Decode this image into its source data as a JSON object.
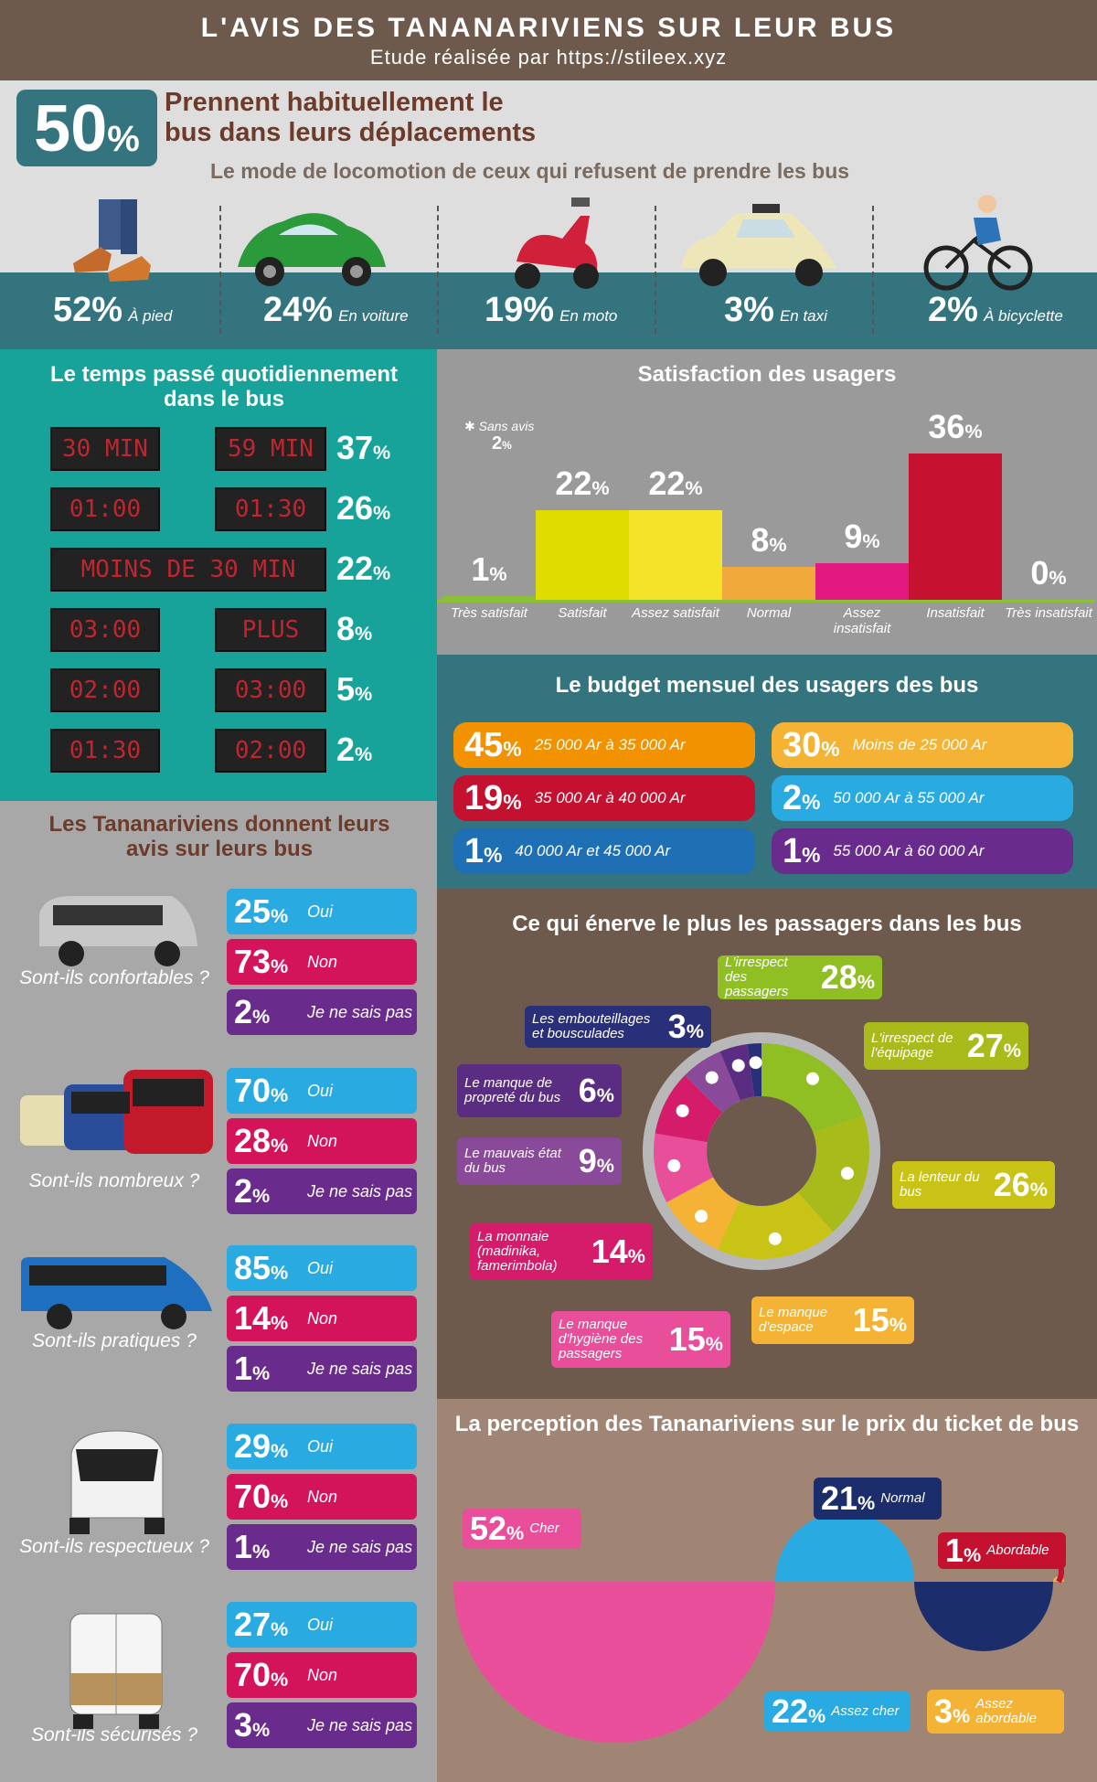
{
  "header": {
    "title": "L'AVIS DES TANANARIVIENS SUR LEUR BUS",
    "subtitle": "Etude réalisée par https://stileex.xyz"
  },
  "intro": {
    "pct": "50",
    "unit": "%",
    "line1": "Prennent habituellement le",
    "line2": "bus dans leurs déplacements",
    "modes_title": "Le mode de locomotion de ceux qui refusent de prendre les bus"
  },
  "modes": [
    {
      "pct": "52",
      "label": "À pied"
    },
    {
      "pct": "24",
      "label": "En voiture"
    },
    {
      "pct": "19",
      "label": "En moto"
    },
    {
      "pct": "3",
      "label": "En taxi"
    },
    {
      "pct": "2",
      "label": "À bicyclette"
    }
  ],
  "time": {
    "title": "Le temps passé quotidiennement dans le bus",
    "rows": [
      {
        "a": "30 MIN",
        "b": "59 MIN",
        "pct": "37"
      },
      {
        "a": "01:00",
        "b": "01:30",
        "pct": "26"
      },
      {
        "a": "MOINS DE 30 MIN",
        "b": "",
        "pct": "22"
      },
      {
        "a": "03:00",
        "b": "PLUS",
        "pct": "8"
      },
      {
        "a": "02:00",
        "b": "03:00",
        "pct": "5"
      },
      {
        "a": "01:30",
        "b": "02:00",
        "pct": "2"
      }
    ]
  },
  "satisfaction": {
    "title": "Satisfaction des usagers",
    "note_label": "Sans avis",
    "note_pct": "2",
    "chart_data": {
      "type": "bar",
      "categories": [
        "Très satisfait",
        "Satisfait",
        "Assez satisfait",
        "Normal",
        "Assez insatisfait",
        "Insatisfait",
        "Très insatisfait"
      ],
      "values": [
        1,
        22,
        22,
        8,
        9,
        36,
        0
      ],
      "colors": [
        "#8bbf3a",
        "#e0dc00",
        "#f5e32a",
        "#f2a93b",
        "#e2197f",
        "#c41230",
        "#9a9a9a"
      ]
    }
  },
  "budget": {
    "title": "Le budget mensuel des usagers des bus",
    "items": [
      {
        "pct": "45",
        "label": "25 000 Ar à 35 000 Ar",
        "color": "#f39200"
      },
      {
        "pct": "30",
        "label": "Moins de 25 000 Ar",
        "color": "#f5b335"
      },
      {
        "pct": "19",
        "label": "35 000 Ar à 40 000 Ar",
        "color": "#c4112f"
      },
      {
        "pct": "2",
        "label": "50 000 Ar à 55 000 Ar",
        "color": "#29abe2"
      },
      {
        "pct": "1",
        "label": "40 000 Ar et 45 000 Ar",
        "color": "#1f6fb5"
      },
      {
        "pct": "1",
        "label": "55 000 Ar à 60 000 Ar",
        "color": "#6a2c8c"
      }
    ]
  },
  "avis": {
    "title": "Les Tananariviens donnent leurs avis sur leurs bus",
    "questions": [
      {
        "q": "Sont-ils  confortables ?",
        "oui": "25",
        "non": "73",
        "nsp": "2"
      },
      {
        "q": "Sont-ils nombreux ?",
        "oui": "70",
        "non": "28",
        "nsp": "2"
      },
      {
        "q": "Sont-ils pratiques ?",
        "oui": "85",
        "non": "14",
        "nsp": "1"
      },
      {
        "q": "Sont-ils respectueux ?",
        "oui": "29",
        "non": "70",
        "nsp": "1"
      },
      {
        "q": "Sont-ils sécurisés ?",
        "oui": "27",
        "non": "70",
        "nsp": "3"
      }
    ],
    "oui_label": "Oui",
    "non_label": "Non",
    "nsp_label": "Je ne sais pas"
  },
  "enerve": {
    "title": "Ce qui énerve le plus les passagers dans les bus",
    "chart_data": {
      "type": "pie",
      "labels": [
        "L'irrespect des passagers",
        "L'irrespect de l'équipage",
        "La lenteur du bus",
        "Le manque d'espace",
        "Le manque d'hygiène des passagers",
        "La monnaie (madinika, famerimbola)",
        "Le mauvais état du bus",
        "Le manque de propreté du bus",
        "Les embouteillages et bousculades"
      ],
      "values": [
        28,
        27,
        26,
        15,
        15,
        14,
        9,
        6,
        3
      ],
      "colors": [
        "#8fbf22",
        "#a8bb1a",
        "#c9c316",
        "#f5b335",
        "#e94e9b",
        "#d41c6a",
        "#8a4a9a",
        "#5b2d82",
        "#2a2f7a"
      ]
    }
  },
  "prix": {
    "title": "La perception des Tananariviens sur le prix du ticket de bus",
    "chart_data": {
      "type": "pie",
      "labels": [
        "Cher",
        "Assez cher",
        "Normal",
        "Assez abordable",
        "Abordable"
      ],
      "values": [
        52,
        22,
        21,
        3,
        1
      ],
      "colors": [
        "#e94e9b",
        "#29abe2",
        "#1b2d6b",
        "#f5b335",
        "#c4112f"
      ]
    }
  }
}
